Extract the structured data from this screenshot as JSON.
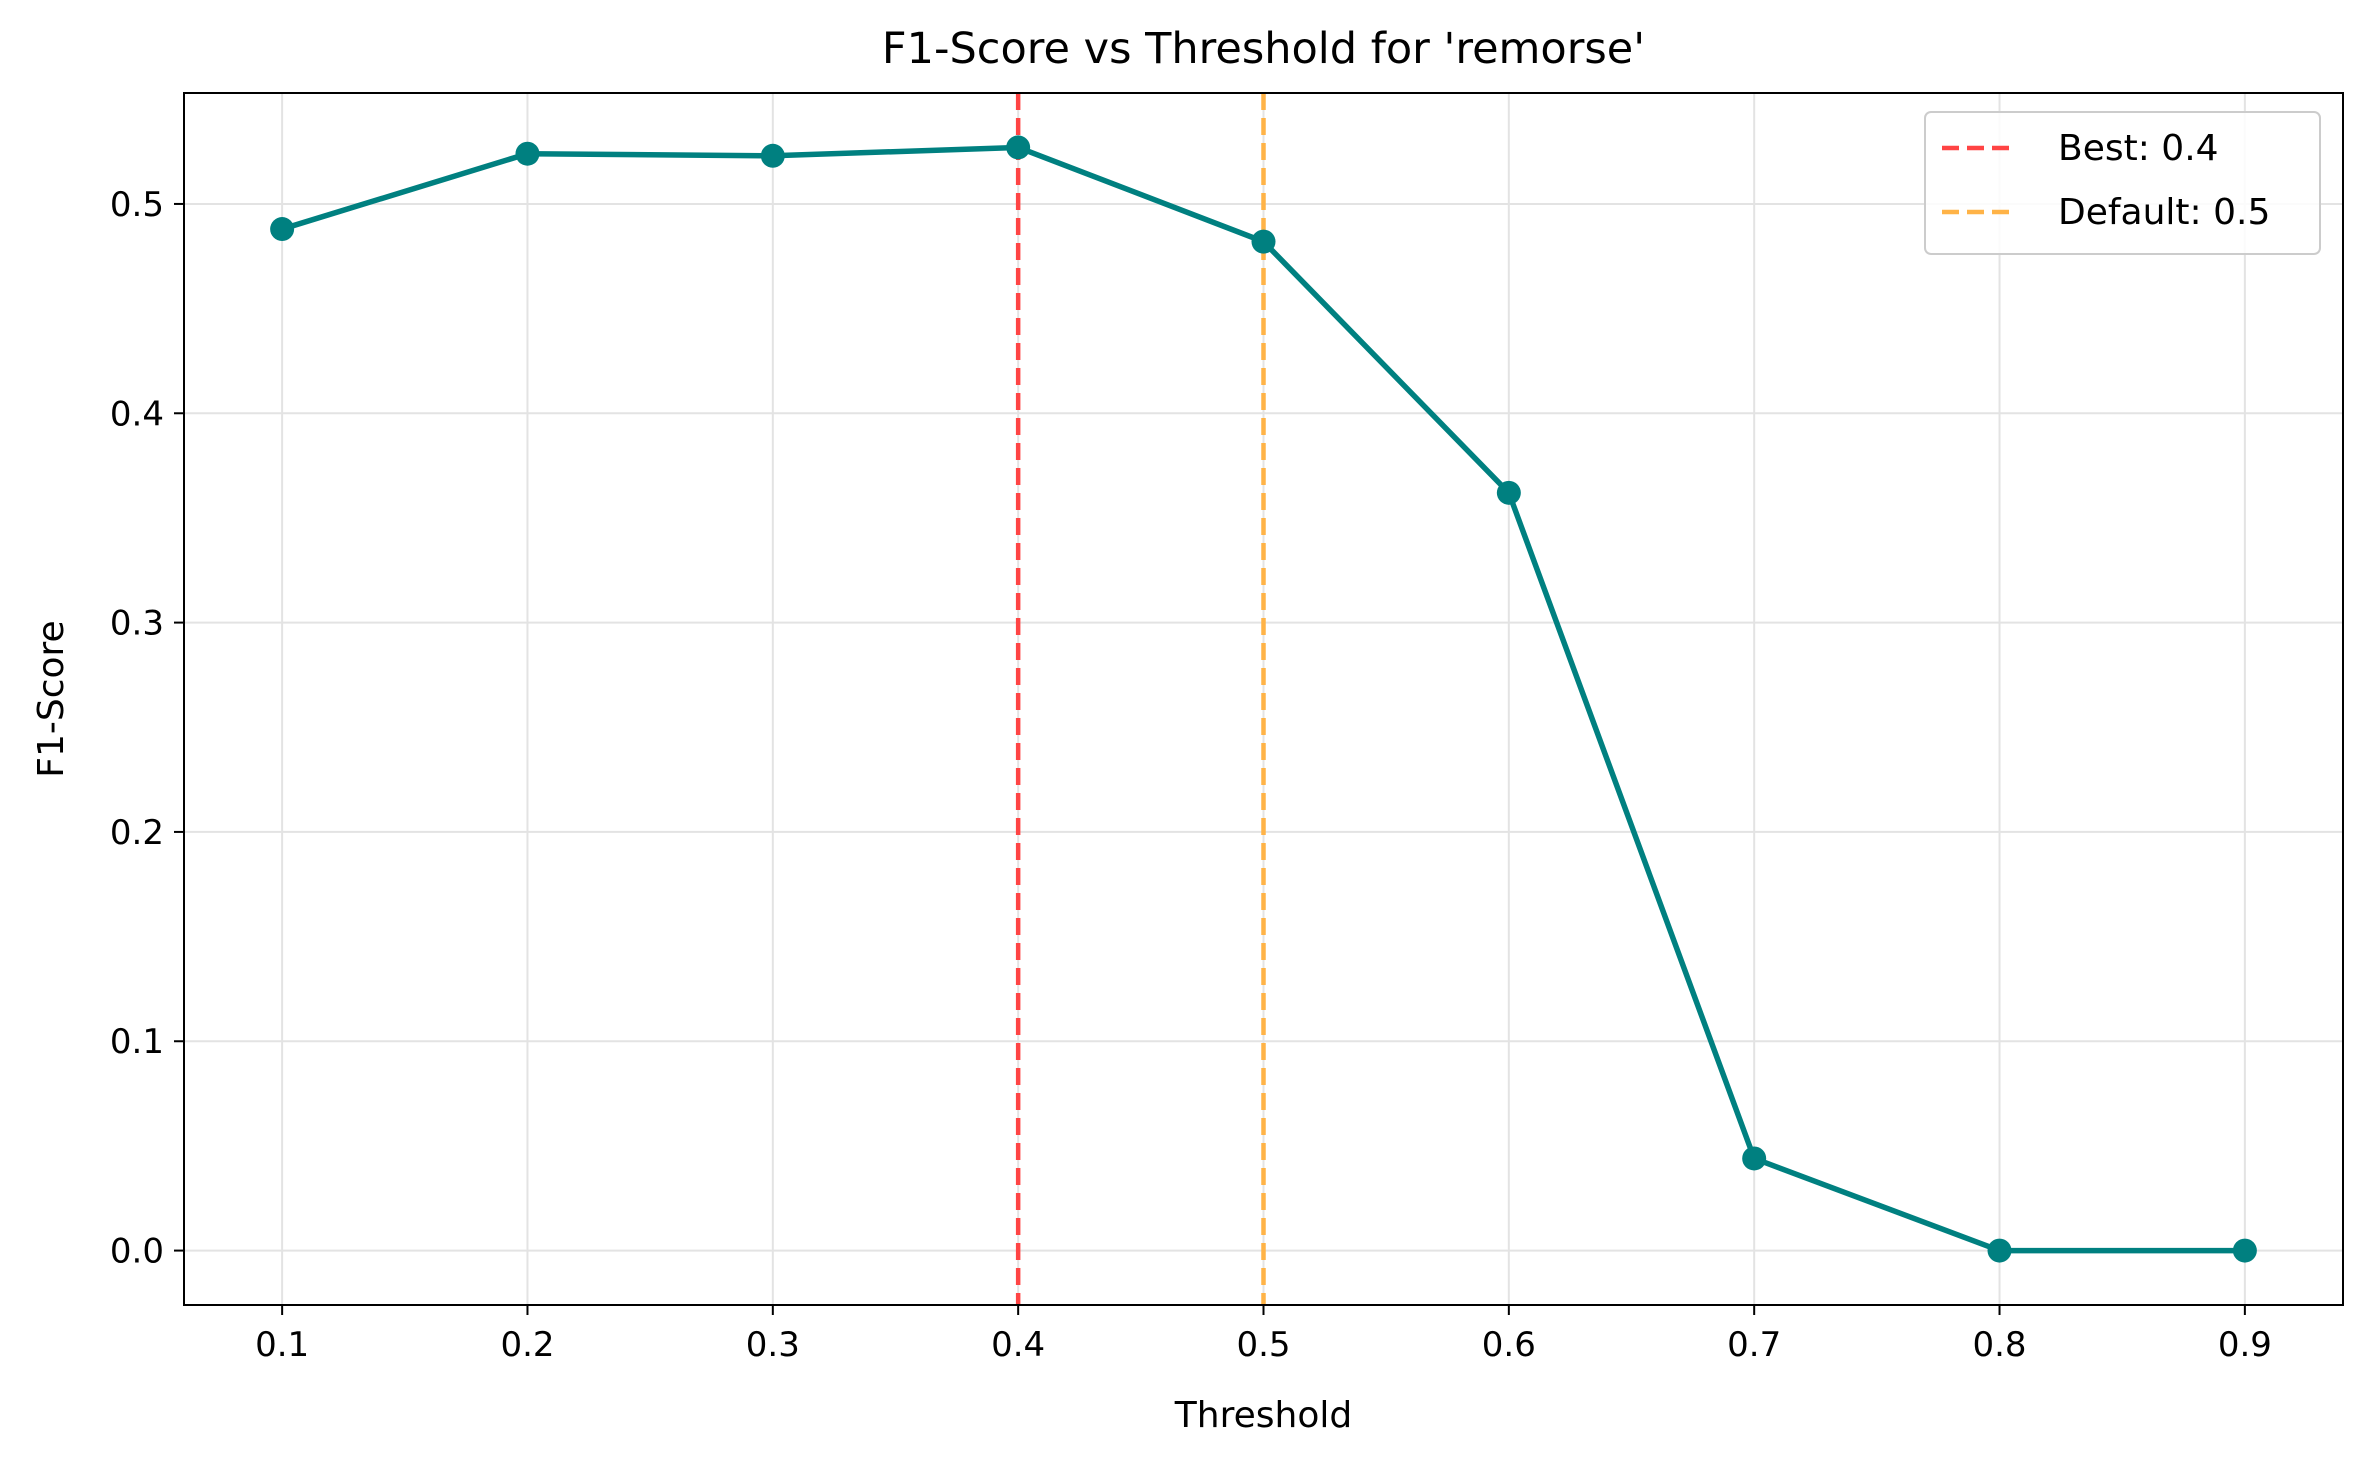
{
  "chart_data": {
    "type": "line",
    "title": "F1-Score vs Threshold for 'remorse'",
    "xlabel": "Threshold",
    "ylabel": "F1-Score",
    "xlim": [
      0.06,
      0.94
    ],
    "ylim": [
      -0.026,
      0.553
    ],
    "xticks": [
      0.1,
      0.2,
      0.3,
      0.4,
      0.5,
      0.6,
      0.7,
      0.8,
      0.9
    ],
    "xtick_labels": [
      "0.1",
      "0.2",
      "0.3",
      "0.4",
      "0.5",
      "0.6",
      "0.7",
      "0.8",
      "0.9"
    ],
    "yticks": [
      0.0,
      0.1,
      0.2,
      0.3,
      0.4,
      0.5
    ],
    "ytick_labels": [
      "0.0",
      "0.1",
      "0.2",
      "0.3",
      "0.4",
      "0.5"
    ],
    "grid": true,
    "legend_position": "top-right",
    "series": [
      {
        "x": [
          0.1,
          0.2,
          0.3,
          0.4,
          0.5,
          0.6,
          0.7,
          0.8,
          0.9
        ],
        "y": [
          0.488,
          0.524,
          0.523,
          0.527,
          0.482,
          0.362,
          0.044,
          0.0,
          0.0
        ],
        "color": "#008080"
      }
    ],
    "reference_lines": [
      {
        "x": 0.4,
        "label": "Best: 0.4",
        "color": "#ff4444"
      },
      {
        "x": 0.5,
        "label": "Default: 0.5",
        "color": "#ffb347"
      }
    ]
  }
}
